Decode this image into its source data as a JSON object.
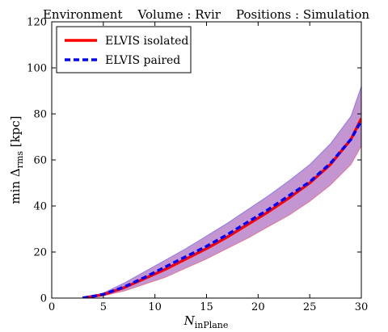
{
  "chart_data": {
    "type": "line",
    "title": "Environment    Volume : Rvir    Positions : Simulation",
    "xlabel_main": "N",
    "xlabel_sub": "inPlane",
    "ylabel_prefix": "min Δ",
    "ylabel_sub": "rms",
    "ylabel_suffix": " [kpc]",
    "xlim": [
      0,
      30
    ],
    "ylim": [
      0,
      120
    ],
    "xticks": [
      0,
      5,
      10,
      15,
      20,
      25,
      30
    ],
    "yticks": [
      0,
      20,
      40,
      60,
      80,
      100,
      120
    ],
    "xtick_labels": [
      "0",
      "5",
      "10",
      "15",
      "20",
      "25",
      "30"
    ],
    "ytick_labels": [
      "0",
      "20",
      "40",
      "60",
      "80",
      "100",
      "120"
    ],
    "grid": false,
    "legend_position": "top-left",
    "x": [
      3,
      5,
      7,
      9,
      11,
      13,
      15,
      17,
      19,
      21,
      23,
      25,
      27,
      29,
      30
    ],
    "series": [
      {
        "name": "ELVIS isolated",
        "color": "#ff0000",
        "style": "solid",
        "values": [
          0,
          1.5,
          4.5,
          8.5,
          12.5,
          17,
          21.5,
          26.5,
          32,
          37.5,
          43.5,
          50,
          58,
          69,
          78
        ]
      },
      {
        "name": "ELVIS paired",
        "color": "#0000ff",
        "style": "dashed",
        "values": [
          0,
          1.6,
          4.8,
          9,
          13.5,
          18,
          22.5,
          27.5,
          33,
          38.5,
          44.5,
          50.5,
          58.5,
          69,
          77
        ]
      }
    ],
    "spread_band": {
      "color_a": "#ff0000",
      "color_b": "#0000ff",
      "lower": [
        0,
        1,
        3,
        6,
        9,
        13,
        17,
        21.5,
        26,
        31,
        36,
        42,
        49,
        58,
        66
      ],
      "upper": [
        0,
        2.2,
        6.5,
        11.5,
        16.5,
        21.5,
        27,
        32.5,
        38.5,
        44.5,
        51,
        58,
        67,
        79,
        92
      ]
    }
  }
}
